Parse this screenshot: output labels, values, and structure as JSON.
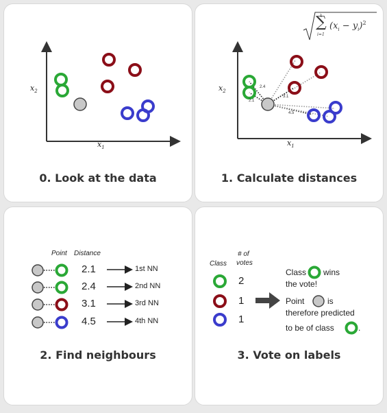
{
  "colors": {
    "green": "#2aa836",
    "red": "#8b0e18",
    "blue": "#3a3ccc",
    "gray_fill": "#c8c8c8",
    "gray_stroke": "#444444",
    "caption_text": "#333333"
  },
  "axes": {
    "x_label": "x",
    "x_sub": "1",
    "y_label": "x",
    "y_sub": "2"
  },
  "panels": {
    "look": {
      "caption": "0. Look at the data"
    },
    "distances": {
      "caption": "1. Calculate distances",
      "labels": [
        "2.4",
        "2.1",
        "3.1",
        "4.5"
      ],
      "formula": {
        "top": "k",
        "bottom": "i=1",
        "body": "(x",
        "sub_a": "i",
        "minus": " − y",
        "sub_b": "i",
        "close": ")",
        "power": "2"
      }
    },
    "neighbours": {
      "caption": "2. Find neighbours",
      "header_point": "Point",
      "header_distance": "Distance",
      "rows": [
        {
          "distance": "2.1",
          "rank": "1st NN",
          "class": "green"
        },
        {
          "distance": "2.4",
          "rank": "2nd NN",
          "class": "green"
        },
        {
          "distance": "3.1",
          "rank": "3rd NN",
          "class": "red"
        },
        {
          "distance": "4.5",
          "rank": "4th NN",
          "class": "blue"
        }
      ]
    },
    "vote": {
      "caption": "3. Vote on labels",
      "header_class": "Class",
      "header_votes_line1": "# of",
      "header_votes_line2": "votes",
      "votes": [
        {
          "class": "green",
          "count": "2"
        },
        {
          "class": "red",
          "count": "1"
        },
        {
          "class": "blue",
          "count": "1"
        }
      ],
      "result_class_word": "Class",
      "result_wins": "wins",
      "result_line2": "the vote!",
      "result_point_word": "Point",
      "result_is": "is",
      "result_line4": "therefore predicted",
      "result_line5": "to be of class",
      "result_period": "."
    }
  }
}
